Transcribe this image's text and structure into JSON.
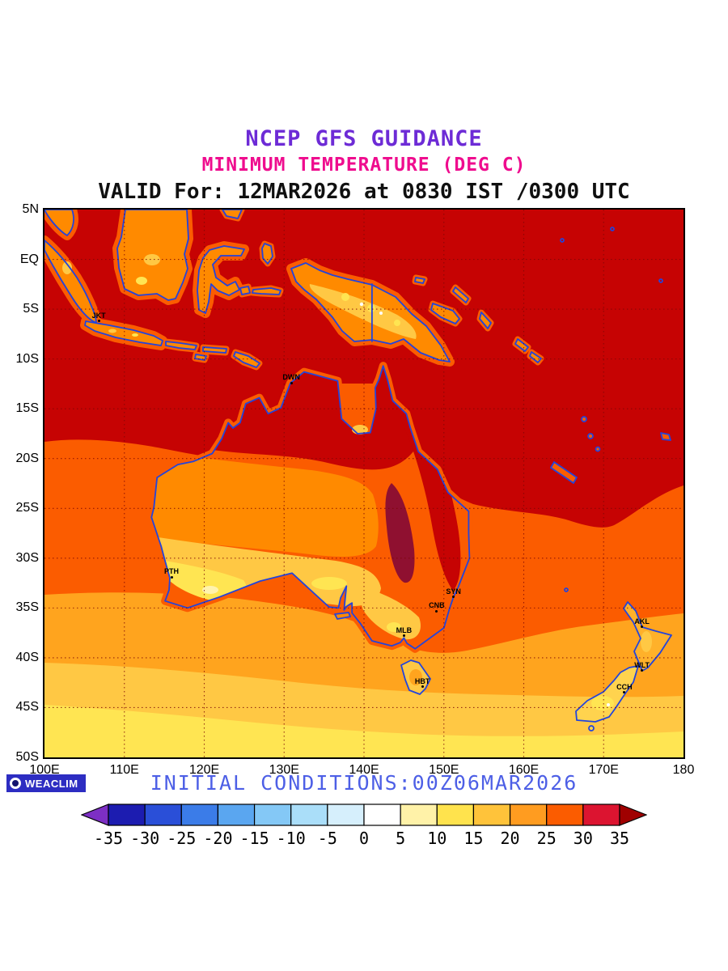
{
  "header": {
    "line1": "NCEP GFS GUIDANCE",
    "line2": "MINIMUM TEMPERATURE (DEG C)",
    "line3": "VALID For: 12MAR2026 at 0830 IST /0300 UTC"
  },
  "map": {
    "lat_ticks": [
      {
        "label": "5N",
        "lat": 5
      },
      {
        "label": "EQ",
        "lat": 0
      },
      {
        "label": "5S",
        "lat": -5
      },
      {
        "label": "10S",
        "lat": -10
      },
      {
        "label": "15S",
        "lat": -15
      },
      {
        "label": "20S",
        "lat": -20
      },
      {
        "label": "25S",
        "lat": -25
      },
      {
        "label": "30S",
        "lat": -30
      },
      {
        "label": "35S",
        "lat": -35
      },
      {
        "label": "40S",
        "lat": -40
      },
      {
        "label": "45S",
        "lat": -45
      },
      {
        "label": "50S",
        "lat": -50
      }
    ],
    "lon_ticks": [
      {
        "label": "100E",
        "lon": 100
      },
      {
        "label": "110E",
        "lon": 110
      },
      {
        "label": "120E",
        "lon": 120
      },
      {
        "label": "130E",
        "lon": 130
      },
      {
        "label": "140E",
        "lon": 140
      },
      {
        "label": "150E",
        "lon": 150
      },
      {
        "label": "160E",
        "lon": 160
      },
      {
        "label": "170E",
        "lon": 170
      },
      {
        "label": "180",
        "lon": 180
      }
    ],
    "cities": [
      {
        "label": "JKT",
        "lon": 106.8,
        "lat": -6.2
      },
      {
        "label": "DWN",
        "lon": 130.9,
        "lat": -12.4
      },
      {
        "label": "PTH",
        "lon": 115.9,
        "lat": -31.9
      },
      {
        "label": "SYN",
        "lon": 151.2,
        "lat": -33.9
      },
      {
        "label": "CNB",
        "lon": 149.1,
        "lat": -35.3
      },
      {
        "label": "MLB",
        "lon": 145.0,
        "lat": -37.8
      },
      {
        "label": "HBT",
        "lon": 147.3,
        "lat": -42.9
      },
      {
        "label": "AKL",
        "lon": 174.8,
        "lat": -36.9
      },
      {
        "label": "WLT",
        "lon": 174.8,
        "lat": -41.3
      },
      {
        "label": "CCH",
        "lon": 172.6,
        "lat": -43.5
      }
    ]
  },
  "colorbar": {
    "unit": "DEG C",
    "tick_labels": [
      "-35",
      "-30",
      "-25",
      "-20",
      "-15",
      "-10",
      "-5",
      "0",
      "5",
      "10",
      "15",
      "20",
      "25",
      "30",
      "35"
    ],
    "segment_colors": [
      "#1c1cb0",
      "#2a4fd8",
      "#3b7ce8",
      "#5aa6f0",
      "#84c8f6",
      "#aadef9",
      "#d6effc",
      "#ffffff",
      "#fff2a8",
      "#ffe34d",
      "#ffc33a",
      "#ff9c20",
      "#fb5c00",
      "#dc1430"
    ],
    "left_arrow_color": "#7d2fc4",
    "right_arrow_color": "#a00000"
  },
  "footer": {
    "initial_conditions": "INITIAL CONDITIONS:00Z06MAR2026",
    "logo_text": "WEACLIM"
  }
}
